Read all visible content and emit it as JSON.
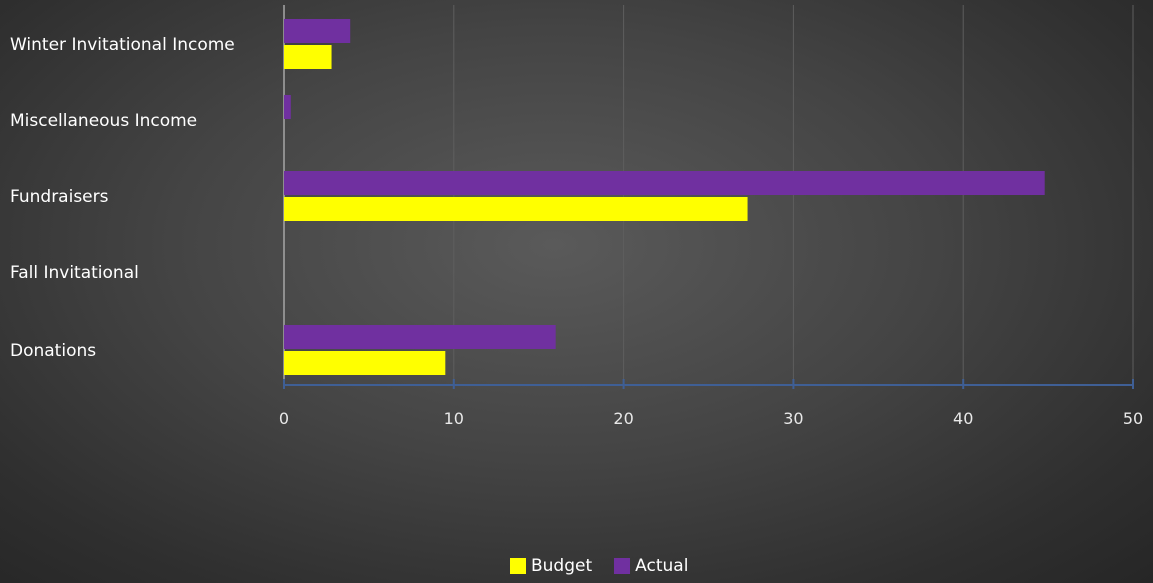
{
  "chart_data": {
    "type": "bar",
    "orientation": "horizontal",
    "categories": [
      "Winter Invitational Income",
      "Miscellaneous Income",
      "Fundraisers",
      "Fall Invitational",
      "Donations"
    ],
    "series": [
      {
        "name": "Actual",
        "color": "#7030a0",
        "values": [
          3.9,
          0.4,
          44.8,
          0,
          16.0
        ]
      },
      {
        "name": "Budget",
        "color": "#ffff00",
        "values": [
          2.8,
          0,
          27.3,
          0,
          9.5
        ]
      }
    ],
    "xlim": [
      0,
      50
    ],
    "xticks": [
      "0",
      "10",
      "20",
      "30",
      "40",
      "50"
    ],
    "grid": true,
    "legend_position": "bottom",
    "legend": [
      {
        "label": "Budget",
        "color": "#ffff00"
      },
      {
        "label": "Actual",
        "color": "#7030a0"
      }
    ],
    "title": "",
    "xlabel": "",
    "ylabel": ""
  }
}
